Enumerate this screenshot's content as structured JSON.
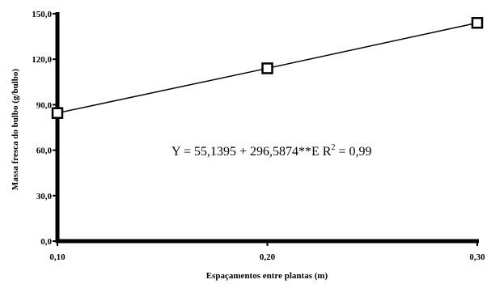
{
  "chart_data": {
    "type": "line",
    "xlabel": "Espaçamentos entre plantas (m)",
    "ylabel": "Massa fresca do bulbo (g/bulbo)",
    "x_ticks": [
      "0,10",
      "0,20",
      "0,30"
    ],
    "y_ticks": [
      "0,0",
      "30,0",
      "60,0",
      "90,0",
      "120,0",
      "150,0"
    ],
    "xlim": [
      0.1,
      0.3
    ],
    "ylim": [
      0,
      150
    ],
    "grid": false,
    "series": [
      {
        "marker": "square",
        "x": [
          0.1,
          0.2,
          0.3
        ],
        "y": [
          84.5,
          114.0,
          144.0
        ]
      }
    ],
    "annotation": {
      "main": "Y = 55,1395 + 296,5874**E R",
      "sup": "2",
      "tail": " = 0,99"
    }
  }
}
